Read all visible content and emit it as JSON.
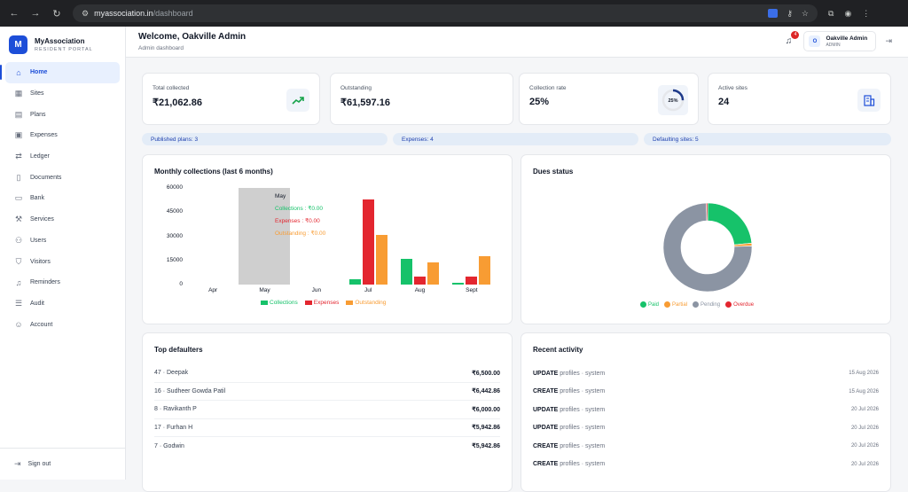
{
  "browser": {
    "host": "myassociation.in",
    "path": "/dashboard"
  },
  "brand": {
    "logo_letter": "M",
    "title": "MyAssociation",
    "subtitle": "RESIDENT PORTAL"
  },
  "sidebar": {
    "items": [
      {
        "label": "Home",
        "icon": "home-icon"
      },
      {
        "label": "Sites",
        "icon": "building-icon"
      },
      {
        "label": "Plans",
        "icon": "calendar-icon"
      },
      {
        "label": "Expenses",
        "icon": "receipt-icon"
      },
      {
        "label": "Ledger",
        "icon": "transfer-icon"
      },
      {
        "label": "Documents",
        "icon": "document-icon"
      },
      {
        "label": "Bank",
        "icon": "bank-card-icon"
      },
      {
        "label": "Services",
        "icon": "wrench-icon"
      },
      {
        "label": "Users",
        "icon": "users-icon"
      },
      {
        "label": "Visitors",
        "icon": "shield-icon"
      },
      {
        "label": "Reminders",
        "icon": "bell-icon"
      },
      {
        "label": "Audit",
        "icon": "audit-icon"
      },
      {
        "label": "Account",
        "icon": "user-icon"
      }
    ],
    "signout_label": "Sign out"
  },
  "header": {
    "welcome": "Welcome, Oakville Admin",
    "subtitle": "Admin dashboard",
    "notification_count": "4",
    "user_initial": "O",
    "user_name": "Oakville Admin",
    "user_role": "ADMIN"
  },
  "kpis": [
    {
      "label": "Total collected",
      "value": "₹21,062.86",
      "icon": "trend-up-icon"
    },
    {
      "label": "Outstanding",
      "value": "₹61,597.16"
    },
    {
      "label": "Collection rate",
      "value": "25%",
      "ring_label": "25%",
      "ring_fraction": 0.25
    },
    {
      "label": "Active sites",
      "value": "24",
      "icon": "building-icon"
    }
  ],
  "pills": [
    {
      "label": "Published plans: 3"
    },
    {
      "label": "Expenses: 4"
    },
    {
      "label": "Defaulting sites: 5"
    }
  ],
  "colors": {
    "accent": "#1d4ed8",
    "collections": "#16c26a",
    "expenses": "#e3262f",
    "outstanding": "#f89c33",
    "pending": "#8b94a3"
  },
  "chart_data": [
    {
      "type": "bar",
      "title": "Monthly collections (last 6 months)",
      "categories": [
        "Apr",
        "May",
        "Jun",
        "Jul",
        "Aug",
        "Sept"
      ],
      "series": [
        {
          "name": "Collections",
          "values": [
            0,
            0,
            0,
            3500,
            16000,
            1000
          ]
        },
        {
          "name": "Expenses",
          "values": [
            0,
            0,
            0,
            53000,
            5000,
            5000
          ]
        },
        {
          "name": "Outstanding",
          "values": [
            0,
            0,
            0,
            31000,
            14000,
            17500
          ]
        }
      ],
      "yticks": [
        "60000",
        "45000",
        "30000",
        "15000",
        "0"
      ],
      "ylim": [
        0,
        60000
      ],
      "tooltip": {
        "month": "May",
        "collections": "Collections : ₹0.00",
        "expenses": "Expenses : ₹0.00",
        "outstanding": "Outstanding : ₹0.00"
      },
      "legend_position": "bottom"
    },
    {
      "type": "pie",
      "title": "Dues status",
      "labels": [
        "Paid",
        "Partial",
        "Pending",
        "Overdue"
      ],
      "values": [
        23.5,
        1,
        75,
        0.5
      ],
      "legend_position": "bottom"
    }
  ],
  "top_defaulters": {
    "title": "Top defaulters",
    "rows": [
      {
        "name": "47 · Deepak",
        "amount": "₹6,500.00"
      },
      {
        "name": "16 · Sudheer Gowda Patil",
        "amount": "₹6,442.86"
      },
      {
        "name": "8 · Ravikanth P",
        "amount": "₹6,000.00"
      },
      {
        "name": "17 · Furhan H",
        "amount": "₹5,942.86"
      },
      {
        "name": "7 · Godwin",
        "amount": "₹5,942.86"
      }
    ]
  },
  "recent_activity": {
    "title": "Recent activity",
    "rows": [
      {
        "action": "UPDATE",
        "detail": "profiles · system",
        "date": "15 Aug 2026"
      },
      {
        "action": "CREATE",
        "detail": "profiles · system",
        "date": "15 Aug 2026"
      },
      {
        "action": "UPDATE",
        "detail": "profiles · system",
        "date": "20 Jul 2026"
      },
      {
        "action": "UPDATE",
        "detail": "profiles · system",
        "date": "20 Jul 2026"
      },
      {
        "action": "CREATE",
        "detail": "profiles · system",
        "date": "20 Jul 2026"
      },
      {
        "action": "CREATE",
        "detail": "profiles · system",
        "date": "20 Jul 2026"
      }
    ]
  }
}
